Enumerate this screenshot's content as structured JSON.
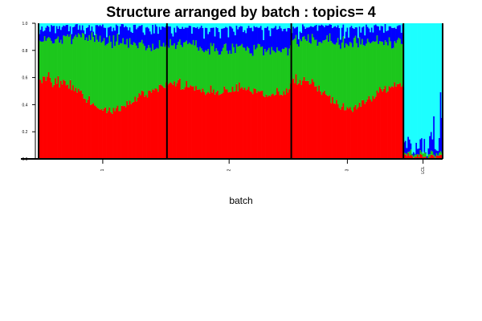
{
  "chart_data": {
    "type": "bar",
    "stacked": true,
    "title": "Structure arranged by batch : topics= 4",
    "xlabel": "batch",
    "ylabel": "",
    "ylim": [
      0,
      1
    ],
    "yticks": [
      "0.0",
      "0.2",
      "0.4",
      "0.6",
      "0.8",
      "1.0"
    ],
    "groups": [
      {
        "label": "1",
        "bars": 95
      },
      {
        "label": "2",
        "bars": 92
      },
      {
        "label": "3",
        "bars": 83
      },
      {
        "label": "LCL",
        "bars": 29
      }
    ],
    "series": [
      {
        "color": "#ff0000",
        "group_mean": [
          0.52,
          0.53,
          0.52,
          0.02
        ],
        "group_profile": [
          [
            0.62,
            0.6,
            0.58,
            0.55,
            0.5,
            0.42,
            0.38,
            0.37,
            0.4,
            0.45,
            0.5,
            0.53,
            0.55
          ],
          [
            0.58,
            0.56,
            0.55,
            0.53,
            0.52,
            0.5,
            0.52,
            0.54,
            0.52,
            0.5,
            0.48,
            0.5,
            0.52
          ],
          [
            0.6,
            0.58,
            0.56,
            0.52,
            0.45,
            0.4,
            0.38,
            0.4,
            0.44,
            0.48,
            0.52,
            0.55,
            0.56
          ],
          [
            0.02,
            0.03,
            0.02,
            0.01,
            0.02,
            0.03,
            0.02,
            0.01,
            0.02,
            0.02,
            0.01,
            0.02,
            0.03
          ]
        ]
      },
      {
        "color": "#1cc71c",
        "group_mean": [
          0.32,
          0.3,
          0.32,
          0.02
        ],
        "group_profile": [
          [
            0.28,
            0.3,
            0.32,
            0.36,
            0.42,
            0.5,
            0.52,
            0.52,
            0.48,
            0.42,
            0.36,
            0.32,
            0.3
          ],
          [
            0.3,
            0.31,
            0.32,
            0.33,
            0.32,
            0.33,
            0.31,
            0.3,
            0.31,
            0.33,
            0.34,
            0.32,
            0.3
          ],
          [
            0.3,
            0.31,
            0.33,
            0.36,
            0.42,
            0.48,
            0.5,
            0.48,
            0.44,
            0.4,
            0.36,
            0.32,
            0.3
          ],
          [
            0.02,
            0.01,
            0.03,
            0.02,
            0.01,
            0.02,
            0.03,
            0.01,
            0.02,
            0.02,
            0.03,
            0.01,
            0.02
          ]
        ]
      },
      {
        "color": "#0000ff",
        "group_mean": [
          0.12,
          0.12,
          0.12,
          0.07
        ],
        "group_profile": [
          [
            0.08,
            0.09,
            0.09,
            0.08,
            0.07,
            0.07,
            0.09,
            0.1,
            0.11,
            0.12,
            0.13,
            0.14,
            0.14
          ],
          [
            0.11,
            0.12,
            0.12,
            0.13,
            0.15,
            0.16,
            0.16,
            0.15,
            0.16,
            0.16,
            0.17,
            0.17,
            0.17
          ],
          [
            0.09,
            0.1,
            0.1,
            0.11,
            0.12,
            0.11,
            0.11,
            0.11,
            0.11,
            0.11,
            0.11,
            0.12,
            0.13
          ],
          [
            0.1,
            0.06,
            0.04,
            0.08,
            0.05,
            0.12,
            0.04,
            0.06,
            0.09,
            0.05,
            0.07,
            0.1,
            0.05
          ]
        ]
      },
      {
        "color": "#1cffff",
        "group_mean": [
          0.02,
          0.03,
          0.02,
          0.89
        ]
      }
    ]
  }
}
